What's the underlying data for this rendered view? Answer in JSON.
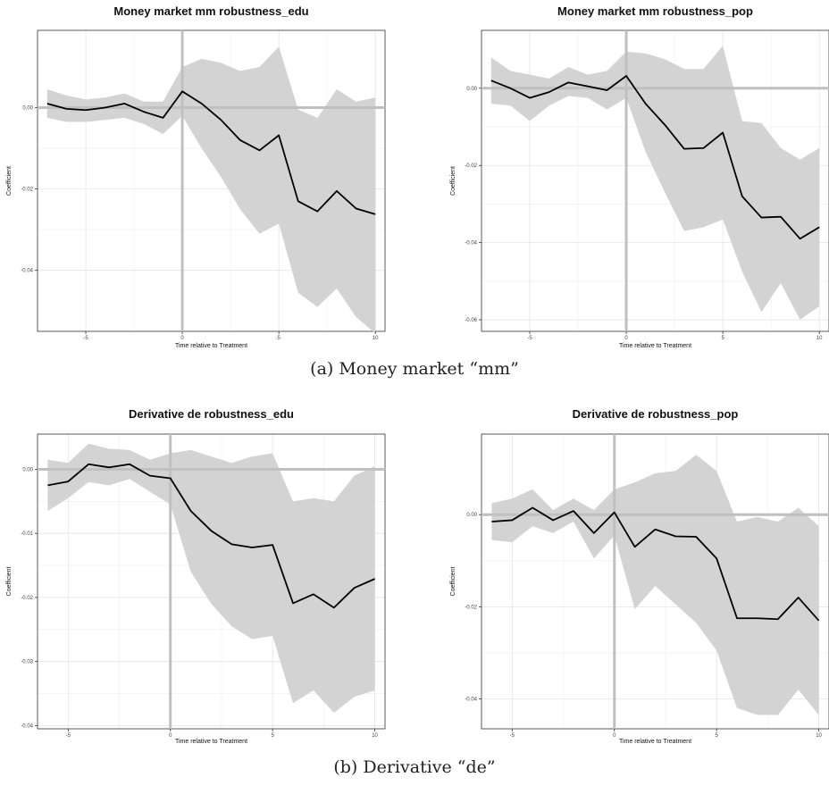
{
  "captions": {
    "a": "(a) Money market “mm”",
    "b": "(b) Derivative “de”"
  },
  "colors": {
    "band": "#d3d3d3",
    "line": "#000000",
    "zero": "#c0c0c0",
    "grid": "#e4e4e4"
  },
  "chart_data": [
    {
      "type": "line",
      "title": "Money market mm robustness_edu",
      "xlabel": "Time relative to Treatment",
      "ylabel": "Coefficient",
      "xlim": [
        -7.5,
        10.5
      ],
      "ylim": [
        -0.055,
        0.019
      ],
      "xticks": [
        -5,
        0,
        5,
        10
      ],
      "xtick_labels": [
        "-5",
        "0",
        "5",
        "10"
      ],
      "yticks": [
        0.0,
        -0.02,
        -0.04
      ],
      "ytick_labels": [
        "0.00",
        "-0.02",
        "-0.04"
      ],
      "reference_lines": {
        "x": 0,
        "y": 0
      },
      "grid": true,
      "x": [
        -7,
        -6,
        -5,
        -4,
        -3,
        -2,
        -1,
        0,
        1,
        2,
        3,
        4,
        5,
        6,
        7,
        8,
        9,
        10
      ],
      "series": [
        {
          "values": [
            0.001,
            -0.0003,
            -0.0006,
            0.0,
            0.001,
            -0.001,
            -0.0025,
            0.004,
            0.001,
            -0.003,
            -0.008,
            -0.0105,
            -0.0068,
            -0.023,
            -0.0255,
            -0.0205,
            -0.0248,
            -0.0262
          ]
        }
      ],
      "ci_lower": [
        -0.0025,
        -0.0035,
        -0.0035,
        -0.003,
        -0.0025,
        -0.004,
        -0.0065,
        -0.002,
        -0.01,
        -0.017,
        -0.025,
        -0.031,
        -0.0285,
        -0.0455,
        -0.049,
        -0.0445,
        -0.0515,
        -0.0555
      ],
      "ci_upper": [
        0.0045,
        0.003,
        0.002,
        0.0025,
        0.0035,
        0.0015,
        0.0015,
        0.01,
        0.012,
        0.011,
        0.009,
        0.01,
        0.015,
        -0.0005,
        -0.0025,
        0.0045,
        0.0015,
        0.0025
      ]
    },
    {
      "type": "line",
      "title": "Money market mm robustness_pop",
      "xlabel": "Time relative to Treatment",
      "ylabel": "Coefficient",
      "xlim": [
        -7.5,
        10.5
      ],
      "ylim": [
        -0.063,
        0.015
      ],
      "xticks": [
        -5,
        0,
        5,
        10
      ],
      "xtick_labels": [
        "-5",
        "0",
        "5",
        "10"
      ],
      "yticks": [
        0.0,
        -0.02,
        -0.04,
        -0.06
      ],
      "ytick_labels": [
        "0.00",
        "-0.02",
        "-0.04",
        "-0.06"
      ],
      "reference_lines": {
        "x": 0,
        "y": 0
      },
      "grid": true,
      "x": [
        -7,
        -6,
        -5,
        -4,
        -3,
        -2,
        -1,
        0,
        1,
        2,
        3,
        4,
        5,
        6,
        7,
        8,
        9,
        10
      ],
      "series": [
        {
          "values": [
            0.002,
            0.0,
            -0.0025,
            -0.001,
            0.0015,
            0.0005,
            -0.0005,
            0.0032,
            -0.004,
            -0.0095,
            -0.0157,
            -0.0155,
            -0.0115,
            -0.028,
            -0.0335,
            -0.0333,
            -0.039,
            -0.036
          ]
        }
      ],
      "ci_lower": [
        -0.004,
        -0.0045,
        -0.0085,
        -0.0045,
        -0.002,
        -0.0025,
        -0.0055,
        -0.0025,
        -0.0165,
        -0.027,
        -0.037,
        -0.036,
        -0.034,
        -0.0475,
        -0.058,
        -0.0505,
        -0.06,
        -0.0565
      ],
      "ci_upper": [
        0.008,
        0.0045,
        0.0035,
        0.0025,
        0.0055,
        0.0035,
        0.0045,
        0.0095,
        0.009,
        0.0075,
        0.005,
        0.005,
        0.011,
        -0.0085,
        -0.009,
        -0.0155,
        -0.0185,
        -0.0155
      ]
    },
    {
      "type": "line",
      "title": "Derivative de robustness_edu",
      "xlabel": "Time relative to Treatment",
      "ylabel": "Coefficient",
      "xlim": [
        -6.5,
        10.5
      ],
      "ylim": [
        -0.0405,
        0.0055
      ],
      "xticks": [
        -5,
        0,
        5,
        10
      ],
      "xtick_labels": [
        "-5",
        "0",
        "5",
        "10"
      ],
      "yticks": [
        0.0,
        -0.01,
        -0.02,
        -0.03,
        -0.04
      ],
      "ytick_labels": [
        "0.00",
        "-0.01",
        "-0.02",
        "-0.03",
        "-0.04"
      ],
      "reference_lines": {
        "x": 0,
        "y": 0
      },
      "grid": true,
      "x": [
        -6,
        -5,
        -4,
        -3,
        -2,
        -1,
        0,
        1,
        2,
        3,
        4,
        5,
        6,
        7,
        8,
        9,
        10
      ],
      "series": [
        {
          "values": [
            -0.0025,
            -0.0019,
            0.0008,
            0.0003,
            0.0008,
            -0.001,
            -0.0014,
            -0.0065,
            -0.0096,
            -0.0117,
            -0.0122,
            -0.0118,
            -0.0209,
            -0.0195,
            -0.0216,
            -0.0185,
            -0.0171
          ]
        }
      ],
      "ci_lower": [
        -0.0065,
        -0.0045,
        -0.002,
        -0.0025,
        -0.0015,
        -0.0035,
        -0.0055,
        -0.016,
        -0.021,
        -0.0245,
        -0.0265,
        -0.026,
        -0.0365,
        -0.0345,
        -0.038,
        -0.0355,
        -0.0345
      ],
      "ci_upper": [
        0.0015,
        0.001,
        0.004,
        0.0032,
        0.003,
        0.0015,
        0.0025,
        0.003,
        0.002,
        0.001,
        0.002,
        0.0025,
        -0.005,
        -0.0045,
        -0.005,
        -0.001,
        0.0005
      ]
    },
    {
      "type": "line",
      "title": "Derivative de robustness_pop",
      "xlabel": "Time relative to Treatment",
      "ylabel": "Coefficient",
      "xlim": [
        -6.5,
        10.5
      ],
      "ylim": [
        -0.0465,
        0.0175
      ],
      "xticks": [
        -5,
        0,
        5,
        10
      ],
      "xtick_labels": [
        "-5",
        "0",
        "5",
        "10"
      ],
      "yticks": [
        0.0,
        -0.02,
        -0.04
      ],
      "ytick_labels": [
        "0.00",
        "-0.02",
        "-0.04"
      ],
      "reference_lines": {
        "x": 0,
        "y": 0
      },
      "grid": true,
      "x": [
        -6,
        -5,
        -4,
        -3,
        -2,
        -1,
        0,
        1,
        2,
        3,
        4,
        5,
        6,
        7,
        8,
        9,
        10
      ],
      "series": [
        {
          "values": [
            -0.0015,
            -0.0012,
            0.0015,
            -0.0012,
            0.0008,
            -0.004,
            0.0005,
            -0.007,
            -0.0032,
            -0.0047,
            -0.0048,
            -0.0095,
            -0.0225,
            -0.0225,
            -0.0227,
            -0.018,
            -0.023
          ]
        }
      ],
      "ci_lower": [
        -0.0055,
        -0.006,
        -0.0025,
        -0.004,
        -0.0015,
        -0.0095,
        -0.0045,
        -0.0205,
        -0.0155,
        -0.0195,
        -0.0235,
        -0.0295,
        -0.042,
        -0.0435,
        -0.0435,
        -0.038,
        -0.0435
      ],
      "ci_upper": [
        0.0025,
        0.0035,
        0.0055,
        0.001,
        0.0035,
        0.001,
        0.0055,
        0.007,
        0.009,
        0.0095,
        0.013,
        0.0095,
        -0.0015,
        -0.0005,
        -0.0015,
        0.0015,
        -0.0025
      ]
    }
  ]
}
